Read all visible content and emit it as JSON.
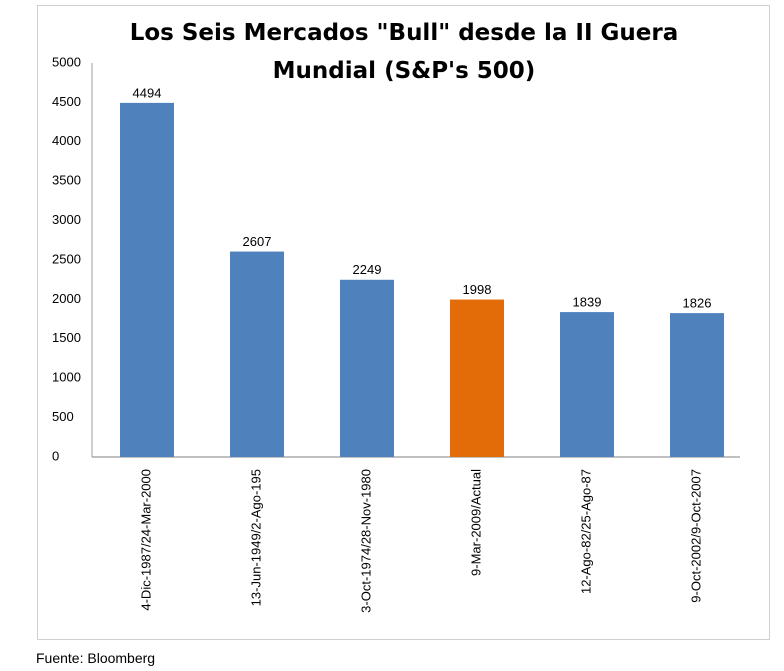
{
  "chart_data": {
    "type": "bar",
    "title": "Los Seis Mercados \"Bull\" desde la II Guera Mundial (S&P's 500)",
    "categories": [
      "4-Dic-1987/24-Mar-2000",
      "13-Jun-1949/2-Ago-195",
      "3-Oct-1974/28-Nov-1980",
      "9-Mar-2009/Actual",
      "12-Ago-82/25-Ago-87",
      "9-Oct-2002/9-Oct-2007"
    ],
    "values": [
      4494,
      2607,
      2249,
      1998,
      1839,
      1826
    ],
    "colors": [
      "#4f81bd",
      "#4f81bd",
      "#4f81bd",
      "#e36c09",
      "#4f81bd",
      "#4f81bd"
    ],
    "ylim": [
      0,
      5000
    ],
    "yticks": [
      0,
      500,
      1000,
      1500,
      2000,
      2500,
      3000,
      3500,
      4000,
      4500,
      5000
    ],
    "grid": false,
    "source": "Fuente: Bloomberg"
  }
}
